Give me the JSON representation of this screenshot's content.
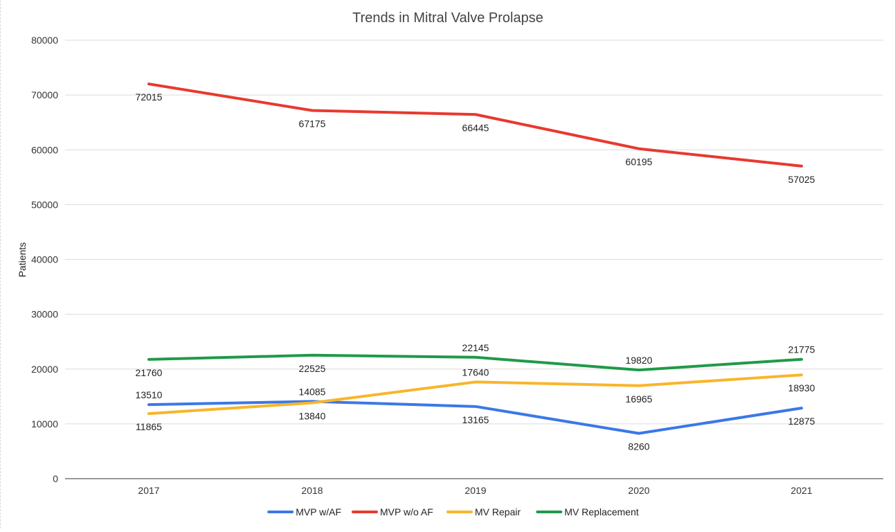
{
  "chart_data": {
    "type": "line",
    "title": "Trends in Mitral Valve Prolapse",
    "xlabel": "",
    "ylabel": "Patients",
    "categories": [
      "2017",
      "2018",
      "2019",
      "2020",
      "2021"
    ],
    "ylim": [
      0,
      80000
    ],
    "yticks": [
      0,
      10000,
      20000,
      30000,
      40000,
      50000,
      60000,
      70000,
      80000
    ],
    "grid": true,
    "legend_position": "bottom",
    "series": [
      {
        "name": "MVP w/AF",
        "color": "#3b78e7",
        "values": [
          13510,
          14085,
          13165,
          8260,
          12875
        ],
        "label_positions": [
          "above",
          "above",
          "below",
          "below",
          "below"
        ]
      },
      {
        "name": "MVP w/o AF",
        "color": "#e8392f",
        "values": [
          72015,
          67175,
          66445,
          60195,
          57025
        ],
        "label_positions": [
          "below",
          "below",
          "below",
          "below",
          "below"
        ]
      },
      {
        "name": "MV Repair",
        "color": "#f9b52a",
        "values": [
          11865,
          13840,
          17640,
          16965,
          18930
        ],
        "label_positions": [
          "below",
          "below",
          "above",
          "below",
          "below"
        ]
      },
      {
        "name": "MV Replacement",
        "color": "#1f9a48",
        "values": [
          21760,
          22525,
          22145,
          19820,
          21775
        ],
        "label_positions": [
          "below",
          "below",
          "above",
          "above",
          "above"
        ]
      }
    ]
  }
}
